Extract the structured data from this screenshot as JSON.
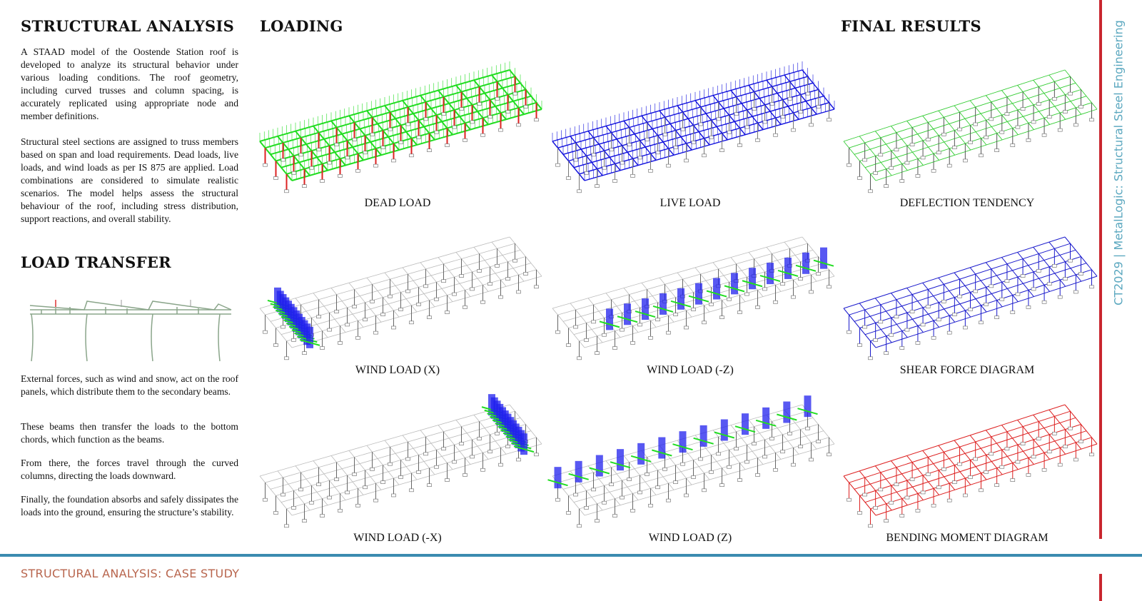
{
  "structural_analysis": {
    "title": "STRUCTURAL ANALYSIS",
    "paragraphs": [
      "A STAAD model of the Oostende Station roof is developed to analyze its structural behavior under various loading conditions. The roof geometry, including curved trusses and column spacing, is accurately replicated using appropriate node and member definitions.",
      "Structural steel sections are assigned to truss members based on span and load requirements. Dead loads, live loads, and wind loads as per IS 875 are applied. Load combinations are considered to simulate realistic scenarios. The model helps assess the structural behaviour of the roof, including stress distribution, support reactions, and overall stability."
    ]
  },
  "load_transfer": {
    "title": "LOAD TRANSFER",
    "paragraphs": [
      "External forces, such as wind and snow, act on the roof panels, which distribute them to the secondary beams.",
      "These beams then transfer the loads to the bottom chords, which function as the beams.",
      "From there, the forces travel through the curved columns, directing the loads downward.",
      "Finally, the foundation absorbs and safely dissipates the loads into the ground, ensuring the structure’s stability."
    ]
  },
  "loading": {
    "title": "LOADING",
    "panels": [
      "DEAD LOAD",
      "LIVE LOAD",
      "WIND LOAD (X)",
      "WIND LOAD (-Z)",
      "WIND LOAD (-X)",
      "WIND LOAD (Z)"
    ]
  },
  "final_results": {
    "title": "FINAL RESULTS",
    "panels": [
      "DEFLECTION TENDENCY",
      "SHEAR FORCE DIAGRAM",
      "BENDING MOMENT DIAGRAM"
    ]
  },
  "footer": "STRUCTURAL ANALYSIS: CASE STUDY",
  "side_label": "CT2029 | MetalLogic: Structural Steel Engineering"
}
